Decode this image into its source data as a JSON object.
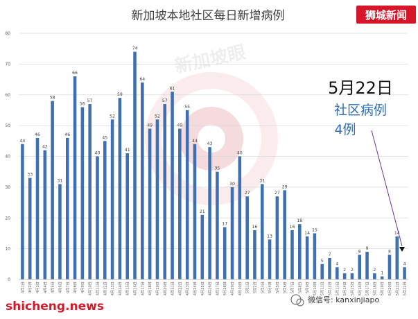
{
  "header": {
    "brand_badge": "狮城新闻"
  },
  "annotation": {
    "date": "5月22日",
    "line1": "社区病例",
    "line2": "4例"
  },
  "watermark": {
    "logo_text": "新加坡眼",
    "footer_site": "shicheng.news",
    "footer_wechat": "微信号: kanxinjiapo"
  },
  "colors": {
    "bar": "#3e6fb0",
    "brand_bg": "#d6172a",
    "annotation_blue": "#2f6db5",
    "grid": "#d9d9d9"
  },
  "chart_data": {
    "type": "bar",
    "title": "新加坡本地社区每日新增病例",
    "xlabel": "",
    "ylabel": "",
    "ylim": [
      0,
      80
    ],
    "yticks": [
      0,
      10,
      20,
      30,
      40,
      50,
      60,
      70,
      80
    ],
    "grid": true,
    "categories": [
      "4月1日",
      "4月2日",
      "4月3日",
      "4月4日",
      "4月5日",
      "4月6日",
      "4月7日",
      "4月8日",
      "4月9日",
      "4月10日",
      "4月11日",
      "4月12日",
      "4月13日",
      "4月14日",
      "4月15日",
      "4月16日",
      "4月17日",
      "4月18日",
      "4月19日",
      "4月20日",
      "4月21日",
      "4月22日",
      "4月23日",
      "4月24日",
      "4月25日",
      "4月26日",
      "4月27日",
      "4月28日",
      "4月29日",
      "4月30日",
      "5月1日",
      "5月2日",
      "5月3日",
      "5月4日",
      "5月5日",
      "5月6日",
      "5月7日",
      "5月8日",
      "5月9日",
      "5月10日",
      "5月11日",
      "5月12日",
      "5月13日",
      "5月14日",
      "5月15日",
      "5月16日",
      "5月17日",
      "5月18日",
      "5月19日",
      "5月20日",
      "5月21日",
      "5月22日"
    ],
    "values": [
      44,
      33,
      46,
      42,
      58,
      31,
      46,
      66,
      56,
      57,
      40,
      45,
      52,
      59,
      41,
      74,
      64,
      49,
      52,
      57,
      61,
      49,
      55,
      44,
      21,
      43,
      35,
      17,
      30,
      40,
      27,
      16,
      31,
      13,
      27,
      29,
      16,
      18,
      14,
      15,
      5,
      7,
      4,
      2,
      2,
      8,
      9,
      2,
      1,
      8,
      14,
      4
    ]
  }
}
